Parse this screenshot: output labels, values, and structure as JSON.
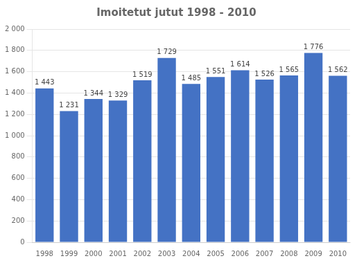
{
  "chart_data": {
    "type": "bar",
    "title": "Imoitetut jutut 1998 - 2010",
    "categories": [
      "1998",
      "1999",
      "2000",
      "2001",
      "2002",
      "2003",
      "2004",
      "2005",
      "2006",
      "2007",
      "2008",
      "2009",
      "2010"
    ],
    "values": [
      1443,
      1231,
      1344,
      1329,
      1519,
      1729,
      1485,
      1551,
      1614,
      1526,
      1565,
      1776,
      1562
    ],
    "value_labels": [
      "1 443",
      "1 231",
      "1 344",
      "1 329",
      "1 519",
      "1 729",
      "1 485",
      "1 551",
      "1 614",
      "1 526",
      "1 565",
      "1 776",
      "1 562"
    ],
    "color": "#4472C4",
    "ylim": [
      0,
      2000
    ],
    "yticks": [
      0,
      200,
      400,
      600,
      800,
      {
        "value": 1000,
        "label": "1 000"
      },
      {
        "value": 1200,
        "label": "1 200"
      },
      {
        "value": 1400,
        "label": "1 400"
      },
      {
        "value": 1600,
        "label": "1 600"
      },
      {
        "value": 1800,
        "label": "1 800"
      },
      {
        "value": 2000,
        "label": "2 000"
      }
    ],
    "grid": true,
    "data_labels": true
  }
}
